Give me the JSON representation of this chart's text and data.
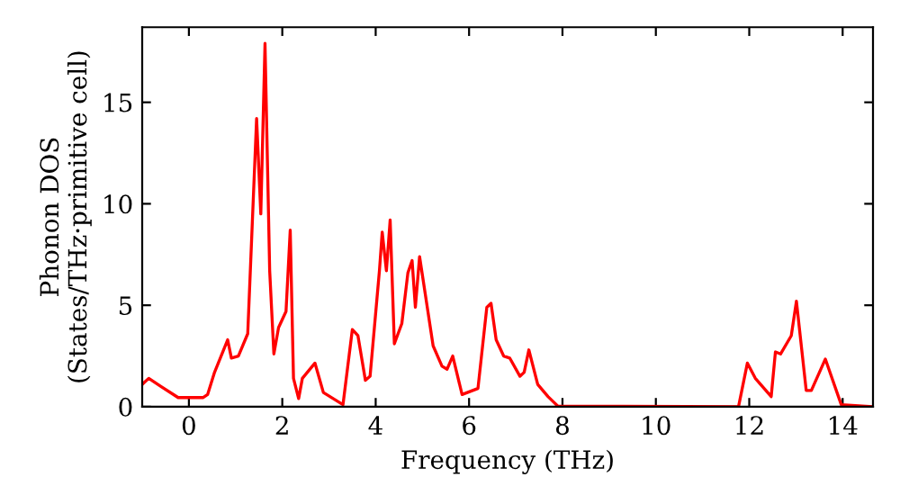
{
  "chart_data": {
    "type": "line",
    "xlabel": "Frequency (THz)",
    "ylabel": "Phonon DOS\n(States/THz·primitive cell)",
    "series": [
      {
        "color": "#ff0000",
        "x": [
          -1,
          -0.86,
          -0.6,
          -0.23,
          0.3,
          0.4,
          0.55,
          0.83,
          0.91,
          1.06,
          1.26,
          1.45,
          1.54,
          1.63,
          1.73,
          1.82,
          1.92,
          2.08,
          2.17,
          2.24,
          2.35,
          2.43,
          2.7,
          2.88,
          3.3,
          3.5,
          3.62,
          3.78,
          3.88,
          4.08,
          4.14,
          4.23,
          4.31,
          4.4,
          4.56,
          4.69,
          4.78,
          4.85,
          4.94,
          5.23,
          5.42,
          5.53,
          5.65,
          5.85,
          6.19,
          6.38,
          6.47,
          6.58,
          6.74,
          6.87,
          7.09,
          7.18,
          7.28,
          7.47,
          7.69,
          7.9,
          11.77,
          11.96,
          12.13,
          12.47,
          12.56,
          12.67,
          12.9,
          13.01,
          13.22,
          13.33,
          13.63,
          13.97,
          14.65
        ],
        "values": [
          1.1,
          1.4,
          1.0,
          0.45,
          0.45,
          0.6,
          1.7,
          3.3,
          2.4,
          2.5,
          3.6,
          14.2,
          9.5,
          17.9,
          6.7,
          2.6,
          3.9,
          4.7,
          8.7,
          1.4,
          0.4,
          1.4,
          2.15,
          0.7,
          0.1,
          3.8,
          3.5,
          1.3,
          1.5,
          6.7,
          8.6,
          6.7,
          9.2,
          3.1,
          4.1,
          6.6,
          7.2,
          4.9,
          7.4,
          3.0,
          2.0,
          1.85,
          2.5,
          0.6,
          0.9,
          4.9,
          5.1,
          3.3,
          2.5,
          2.4,
          1.5,
          1.7,
          2.8,
          1.1,
          0.5,
          0.03,
          0,
          2.15,
          1.4,
          0.5,
          2.7,
          2.6,
          3.5,
          5.2,
          0.8,
          0.8,
          2.35,
          0.1,
          0
        ]
      }
    ],
    "xlim": [
      -1,
      14.65
    ],
    "ylim": [
      0,
      18.7
    ],
    "xticks": [
      0,
      2,
      4,
      6,
      8,
      10,
      12,
      14
    ],
    "yticks": [
      0,
      5,
      10,
      15
    ],
    "grid": false,
    "legend": false,
    "marker": "none",
    "line_style": "solid"
  }
}
